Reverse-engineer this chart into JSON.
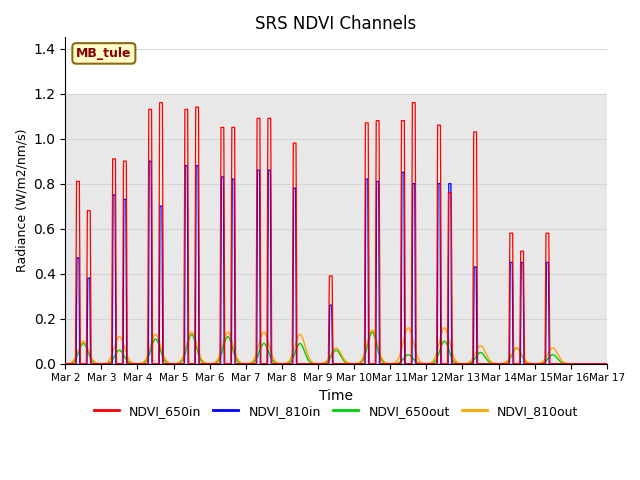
{
  "title": "SRS NDVI Channels",
  "xlabel": "Time",
  "ylabel": "Radiance (W/m2/nm/s)",
  "ylim": [
    0,
    1.45
  ],
  "xlim_days": [
    2,
    17
  ],
  "annotation_text": "MB_tule",
  "annotation_color": "#8B0000",
  "annotation_bg": "#FFFFCC",
  "annotation_border": "#8B6914",
  "shaded_region": [
    0.0,
    1.2
  ],
  "shaded_color": "#E8E8E8",
  "colors": {
    "NDVI_650in": "#FF0000",
    "NDVI_810in": "#0000FF",
    "NDVI_650out": "#00CC00",
    "NDVI_810out": "#FFA500"
  },
  "day_data": [
    {
      "day": 2,
      "p650in_1": 0.81,
      "p650in_2": 0.68,
      "p810in_1": 0.47,
      "p810in_2": 0.38,
      "p650out": 0.09,
      "p810out": 0.1,
      "has_two": true
    },
    {
      "day": 3,
      "p650in_1": 0.91,
      "p650in_2": 0.9,
      "p810in_1": 0.75,
      "p810in_2": 0.73,
      "p650out": 0.06,
      "p810out": 0.12,
      "has_two": true
    },
    {
      "day": 4,
      "p650in_1": 1.13,
      "p650in_2": 1.16,
      "p810in_1": 0.9,
      "p810in_2": 0.7,
      "p650out": 0.11,
      "p810out": 0.13,
      "has_two": true
    },
    {
      "day": 5,
      "p650in_1": 1.13,
      "p650in_2": 1.14,
      "p810in_1": 0.88,
      "p810in_2": 0.88,
      "p650out": 0.13,
      "p810out": 0.14,
      "has_two": true
    },
    {
      "day": 6,
      "p650in_1": 1.05,
      "p650in_2": 1.05,
      "p810in_1": 0.83,
      "p810in_2": 0.82,
      "p650out": 0.12,
      "p810out": 0.14,
      "has_two": true
    },
    {
      "day": 7,
      "p650in_1": 1.09,
      "p650in_2": 1.09,
      "p810in_1": 0.86,
      "p810in_2": 0.86,
      "p650out": 0.09,
      "p810out": 0.14,
      "has_two": true
    },
    {
      "day": 8,
      "p650in_1": 0.98,
      "p650in_2": 0.98,
      "p810in_1": 0.78,
      "p810in_2": 0.78,
      "p650out": 0.09,
      "p810out": 0.13,
      "has_two": false
    },
    {
      "day": 9,
      "p650in_1": 0.39,
      "p650in_2": 0.39,
      "p810in_1": 0.26,
      "p810in_2": 0.26,
      "p650out": 0.06,
      "p810out": 0.07,
      "has_two": false
    },
    {
      "day": 10,
      "p650in_1": 1.07,
      "p650in_2": 1.08,
      "p810in_1": 0.82,
      "p810in_2": 0.81,
      "p650out": 0.14,
      "p810out": 0.15,
      "has_two": true
    },
    {
      "day": 11,
      "p650in_1": 1.08,
      "p650in_2": 1.16,
      "p810in_1": 0.85,
      "p810in_2": 0.8,
      "p650out": 0.04,
      "p810out": 0.16,
      "has_two": true
    },
    {
      "day": 12,
      "p650in_1": 1.06,
      "p650in_2": 0.76,
      "p810in_1": 0.8,
      "p810in_2": 0.8,
      "p650out": 0.1,
      "p810out": 0.16,
      "has_two": true
    },
    {
      "day": 13,
      "p650in_1": 1.03,
      "p650in_2": 1.03,
      "p810in_1": 0.43,
      "p810in_2": 0.43,
      "p650out": 0.05,
      "p810out": 0.08,
      "has_two": false
    },
    {
      "day": 14,
      "p650in_1": 0.58,
      "p650in_2": 0.5,
      "p810in_1": 0.45,
      "p810in_2": 0.45,
      "p650out": 0.07,
      "p810out": 0.07,
      "has_two": true
    },
    {
      "day": 15,
      "p650in_1": 0.58,
      "p650in_2": 0.58,
      "p810in_1": 0.45,
      "p810in_2": 0.45,
      "p650out": 0.04,
      "p810out": 0.07,
      "has_two": false
    }
  ],
  "xtick_labels": [
    "Mar 2",
    "Mar 3",
    "Mar 4",
    "Mar 5",
    "Mar 6",
    "Mar 7",
    "Mar 8",
    "Mar 9",
    "Mar 10",
    "Mar 11",
    "Mar 12",
    "Mar 13",
    "Mar 14",
    "Mar 15",
    "Mar 16",
    "Mar 17"
  ]
}
